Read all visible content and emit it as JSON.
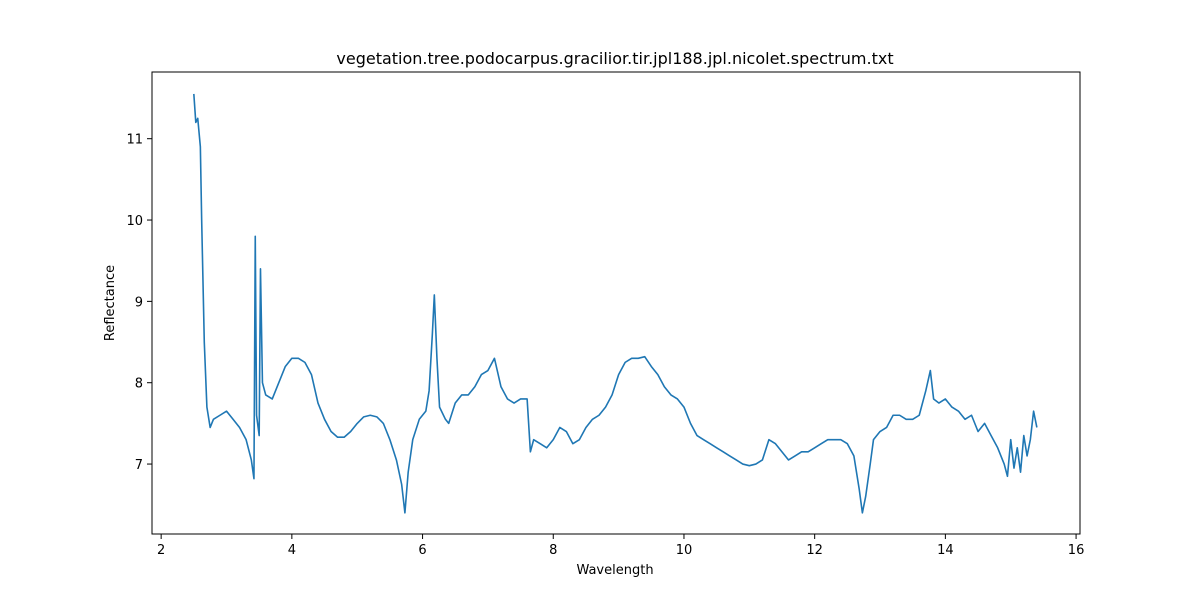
{
  "chart_data": {
    "type": "line",
    "title": "vegetation.tree.podocarpus.gracilior.tir.jpl188.jpl.nicolet.spectrum.txt",
    "x_label": "Wavelength",
    "y_label": "Reflectance",
    "xlim": [
      1.86,
      16.06
    ],
    "ylim": [
      6.14,
      11.82
    ],
    "xticks": [
      2,
      4,
      6,
      8,
      10,
      12,
      14,
      16
    ],
    "yticks": [
      7,
      8,
      9,
      10,
      11
    ],
    "series": [
      {
        "color": "#1f77b4",
        "x": [
          2.5,
          2.53,
          2.56,
          2.6,
          2.62,
          2.66,
          2.7,
          2.75,
          2.8,
          2.9,
          3.0,
          3.1,
          3.2,
          3.3,
          3.38,
          3.42,
          3.44,
          3.46,
          3.5,
          3.52,
          3.55,
          3.6,
          3.7,
          3.8,
          3.9,
          4.0,
          4.1,
          4.2,
          4.3,
          4.4,
          4.5,
          4.6,
          4.7,
          4.8,
          4.9,
          5.0,
          5.1,
          5.2,
          5.3,
          5.4,
          5.5,
          5.6,
          5.68,
          5.73,
          5.78,
          5.85,
          5.95,
          6.05,
          6.1,
          6.15,
          6.18,
          6.22,
          6.26,
          6.35,
          6.4,
          6.5,
          6.6,
          6.7,
          6.8,
          6.9,
          7.0,
          7.1,
          7.2,
          7.3,
          7.4,
          7.5,
          7.6,
          7.65,
          7.7,
          7.8,
          7.9,
          8.0,
          8.1,
          8.2,
          8.3,
          8.4,
          8.5,
          8.6,
          8.7,
          8.8,
          8.9,
          9.0,
          9.1,
          9.2,
          9.3,
          9.4,
          9.5,
          9.6,
          9.7,
          9.8,
          9.9,
          10.0,
          10.1,
          10.2,
          10.3,
          10.4,
          10.5,
          10.6,
          10.7,
          10.8,
          10.9,
          11.0,
          11.1,
          11.2,
          11.3,
          11.4,
          11.5,
          11.6,
          11.7,
          11.8,
          11.9,
          12.0,
          12.1,
          12.2,
          12.3,
          12.4,
          12.5,
          12.6,
          12.68,
          12.73,
          12.78,
          12.85,
          12.9,
          13.0,
          13.1,
          13.2,
          13.3,
          13.4,
          13.5,
          13.6,
          13.7,
          13.77,
          13.82,
          13.9,
          14.0,
          14.1,
          14.2,
          14.3,
          14.4,
          14.5,
          14.6,
          14.7,
          14.8,
          14.9,
          14.95,
          15.0,
          15.05,
          15.1,
          15.15,
          15.2,
          15.25,
          15.3,
          15.35,
          15.4
        ],
        "values": [
          11.55,
          11.2,
          11.25,
          10.9,
          10.0,
          8.5,
          7.7,
          7.45,
          7.55,
          7.6,
          7.65,
          7.55,
          7.45,
          7.3,
          7.05,
          6.82,
          9.8,
          7.6,
          7.35,
          9.4,
          8.0,
          7.85,
          7.8,
          8.0,
          8.2,
          8.3,
          8.3,
          8.25,
          8.1,
          7.75,
          7.55,
          7.4,
          7.33,
          7.33,
          7.4,
          7.5,
          7.58,
          7.6,
          7.58,
          7.5,
          7.3,
          7.05,
          6.75,
          6.4,
          6.9,
          7.3,
          7.55,
          7.65,
          7.9,
          8.6,
          9.08,
          8.3,
          7.7,
          7.55,
          7.5,
          7.75,
          7.85,
          7.85,
          7.95,
          8.1,
          8.15,
          8.3,
          7.95,
          7.8,
          7.75,
          7.8,
          7.8,
          7.15,
          7.3,
          7.25,
          7.2,
          7.3,
          7.45,
          7.4,
          7.25,
          7.3,
          7.45,
          7.55,
          7.6,
          7.7,
          7.85,
          8.1,
          8.25,
          8.3,
          8.3,
          8.32,
          8.2,
          8.1,
          7.95,
          7.85,
          7.8,
          7.7,
          7.5,
          7.35,
          7.3,
          7.25,
          7.2,
          7.15,
          7.1,
          7.05,
          7.0,
          6.98,
          7.0,
          7.05,
          7.3,
          7.25,
          7.15,
          7.05,
          7.1,
          7.15,
          7.15,
          7.2,
          7.25,
          7.3,
          7.3,
          7.3,
          7.25,
          7.1,
          6.7,
          6.4,
          6.6,
          7.0,
          7.3,
          7.4,
          7.45,
          7.6,
          7.6,
          7.55,
          7.55,
          7.6,
          7.9,
          8.15,
          7.8,
          7.75,
          7.8,
          7.7,
          7.65,
          7.55,
          7.6,
          7.4,
          7.5,
          7.35,
          7.2,
          7.0,
          6.85,
          7.3,
          6.95,
          7.2,
          6.9,
          7.35,
          7.1,
          7.3,
          7.65,
          7.45
        ]
      }
    ]
  }
}
